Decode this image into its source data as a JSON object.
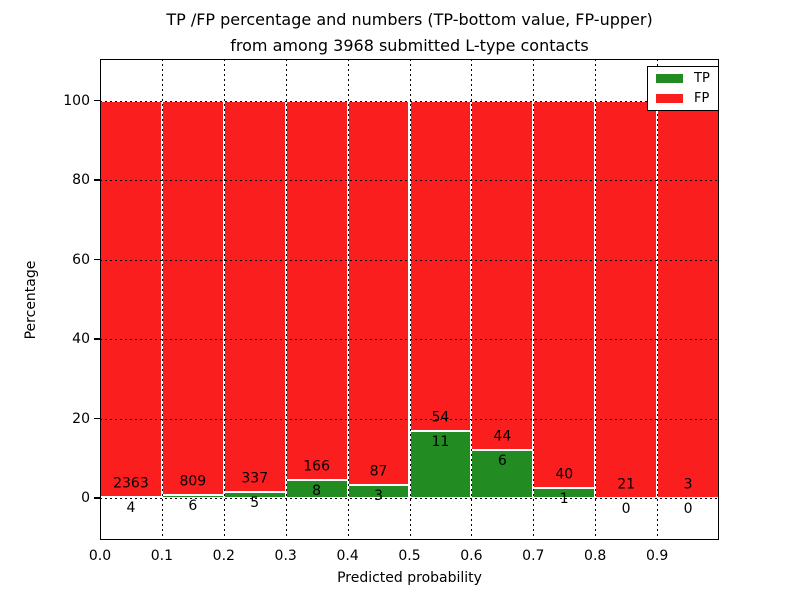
{
  "figure": {
    "title_line1": "TP /FP percentage and numbers (TP-bottom value, FP-upper)",
    "title_line2": "from among 3968 submitted L-type contacts",
    "xlabel": "Predicted probability",
    "ylabel": "Percentage",
    "background": "#ffffff"
  },
  "legend": {
    "position": "upper-right",
    "items": [
      {
        "label": "TP",
        "color": "#228b22"
      },
      {
        "label": "FP",
        "color": "#fa1e1e"
      }
    ]
  },
  "chart_data": {
    "type": "bar",
    "subtype": "stacked-percentage-histogram",
    "title": "TP /FP percentage and numbers (TP-bottom value, FP-upper) from among 3968 submitted L-type contacts",
    "xlabel": "Predicted probability",
    "ylabel": "Percentage",
    "total_contacts": 3968,
    "bin_width": 0.1,
    "x_bin_edges": [
      0.0,
      0.1,
      0.2,
      0.3,
      0.4,
      0.5,
      0.6,
      0.7,
      0.8,
      0.9,
      1.0
    ],
    "x_tick_labels": [
      "0.0",
      "0.1",
      "0.2",
      "0.3",
      "0.4",
      "0.5",
      "0.6",
      "0.7",
      "0.8",
      "0.9"
    ],
    "y_ticks": [
      0,
      20,
      40,
      60,
      80,
      100
    ],
    "xlim": [
      0.0,
      1.0
    ],
    "ylim": [
      -11,
      110.5
    ],
    "grid": {
      "visible": true,
      "style": "dotted",
      "color": "#000000"
    },
    "bar_edge_color": "#ffffff",
    "legend_position": "upper right",
    "series": [
      {
        "name": "TP",
        "color": "#228b22",
        "counts": [
          4,
          6,
          5,
          8,
          3,
          11,
          6,
          1,
          0,
          0
        ],
        "percent": [
          0.169,
          0.736,
          1.462,
          4.598,
          3.333,
          16.923,
          12.0,
          2.439,
          0.0,
          0.0
        ]
      },
      {
        "name": "FP",
        "color": "#fa1e1e",
        "counts": [
          2363,
          809,
          337,
          166,
          87,
          54,
          44,
          40,
          21,
          3
        ],
        "percent": [
          99.831,
          99.264,
          98.538,
          95.402,
          96.667,
          83.077,
          88.0,
          97.561,
          100.0,
          100.0
        ]
      }
    ]
  }
}
